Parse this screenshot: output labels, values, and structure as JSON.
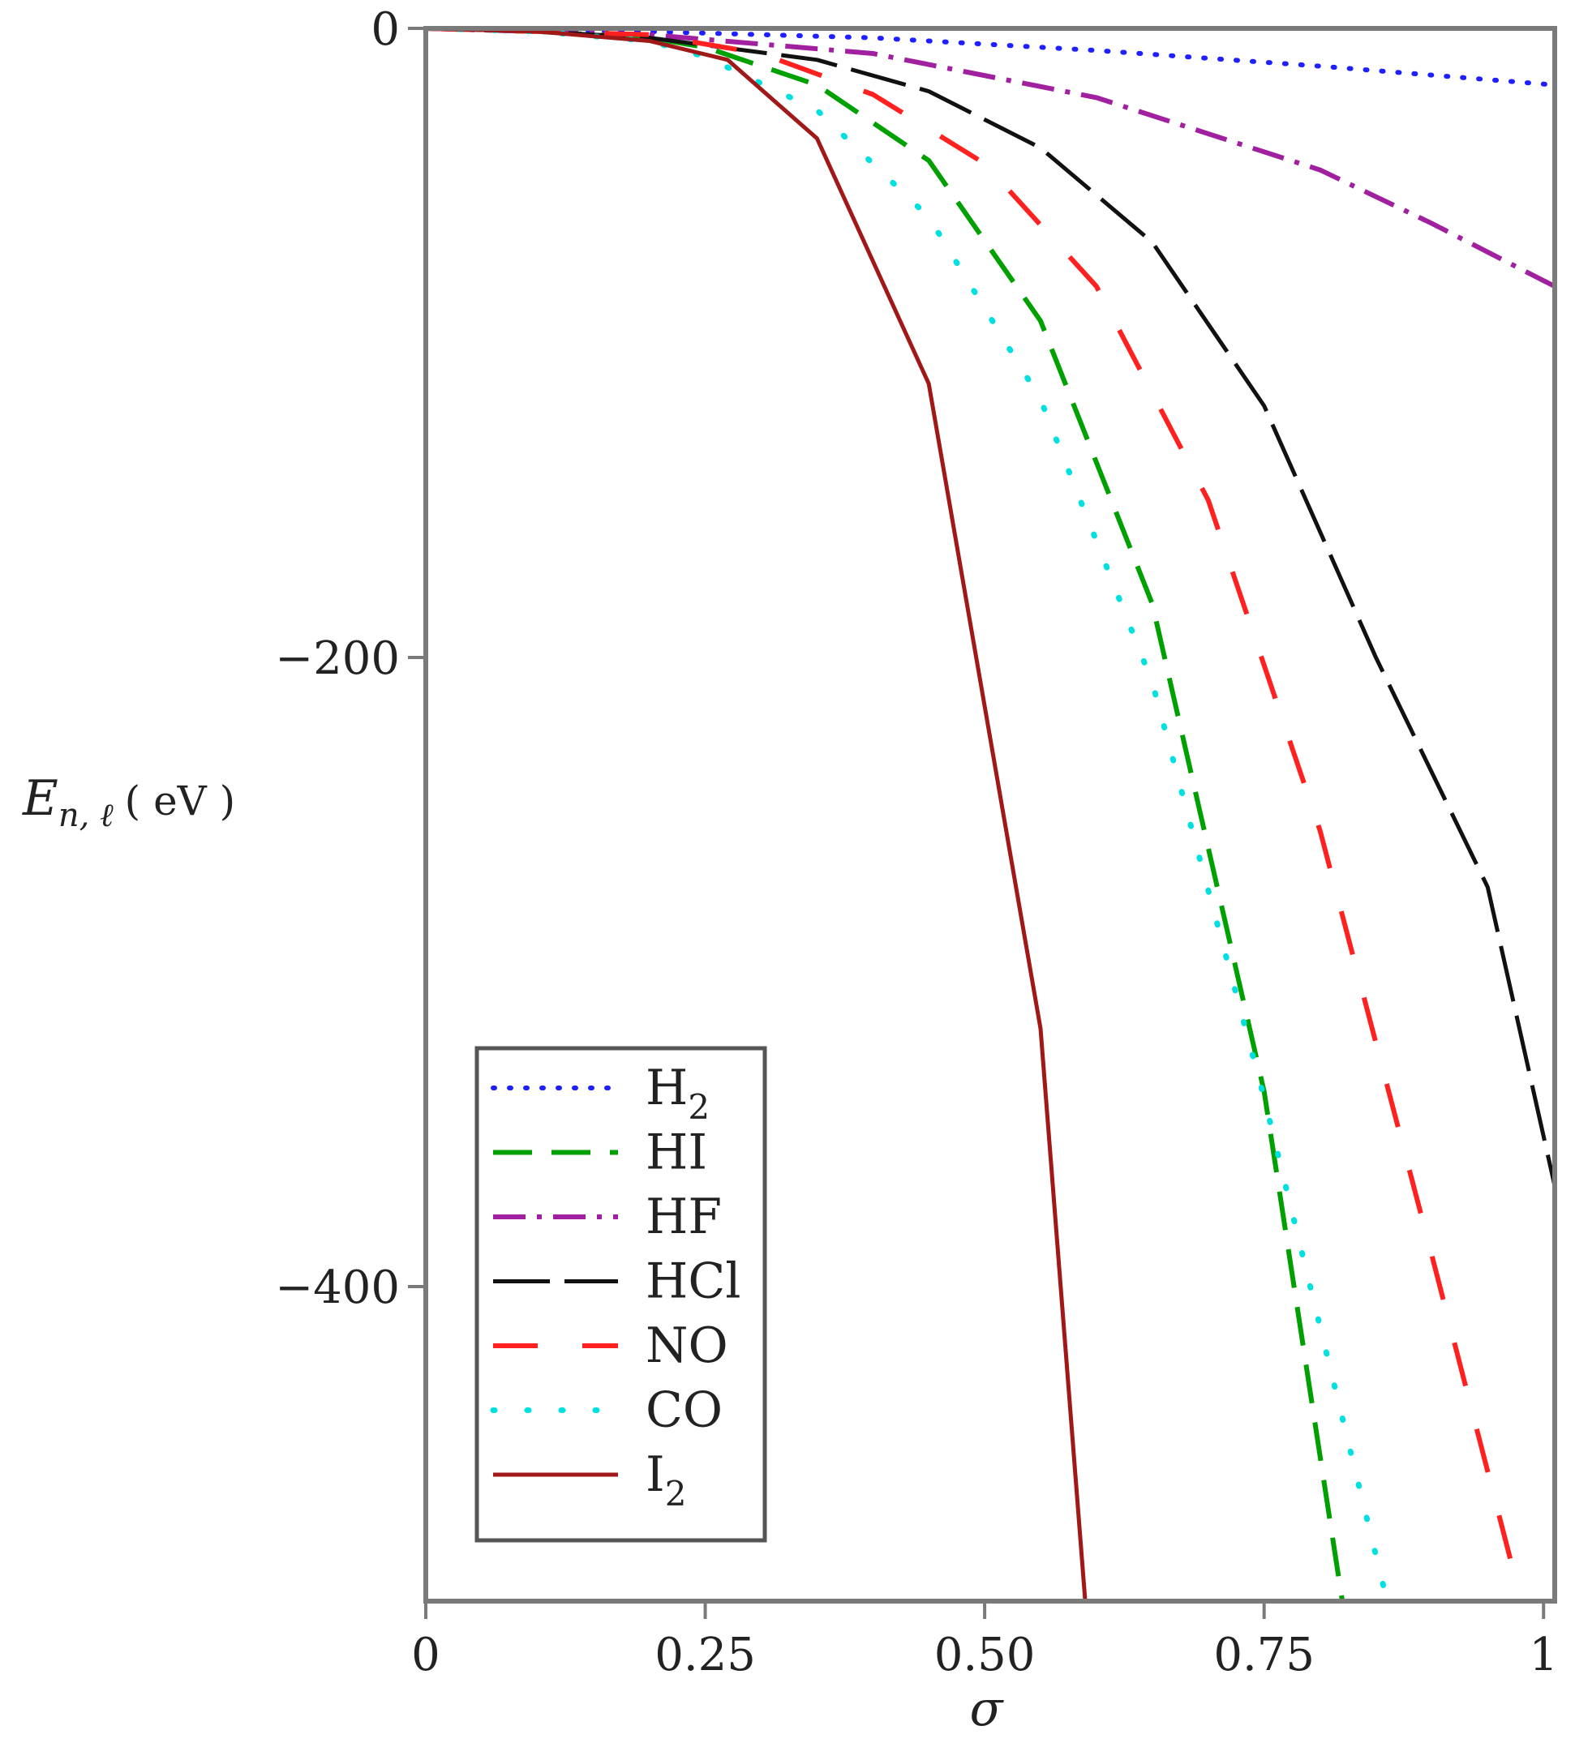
{
  "chart_data": {
    "type": "line",
    "title": "",
    "xlabel": "σ",
    "ylabel_main": "E",
    "ylabel_sub": "n, ℓ",
    "ylabel_unit": "( eV )",
    "xlim": [
      0,
      1.01
    ],
    "ylim": [
      -500,
      0
    ],
    "x_ticks": [
      {
        "value": 0,
        "label": "0"
      },
      {
        "value": 0.25,
        "label": "0.25"
      },
      {
        "value": 0.5,
        "label": "0.50"
      },
      {
        "value": 0.75,
        "label": "0.75"
      },
      {
        "value": 1,
        "label": "1"
      }
    ],
    "y_ticks": [
      {
        "value": 0,
        "label": "0"
      },
      {
        "value": -200,
        "label": "−200"
      },
      {
        "value": -400,
        "label": "−400"
      }
    ],
    "legend_position": "bottom-left",
    "series": [
      {
        "name": "H",
        "sub": "2",
        "color": "#1f1fff",
        "dash": "2 18",
        "width": 6,
        "cap": "round",
        "x": [
          0,
          0.2,
          0.4,
          0.6,
          0.8,
          1.01
        ],
        "y": [
          0,
          -1,
          -3,
          -7,
          -12,
          -18
        ]
      },
      {
        "name": "HI",
        "sub": "",
        "color": "#00a000",
        "dash": "48 24",
        "width": 6,
        "cap": "butt",
        "x": [
          0,
          0.1,
          0.2,
          0.25,
          0.35,
          0.45,
          0.55,
          0.65,
          0.75,
          0.82
        ],
        "y": [
          0,
          -1,
          -3,
          -6,
          -18,
          -42,
          -93,
          -183,
          -338,
          -500
        ]
      },
      {
        "name": "HF",
        "sub": "",
        "color": "#a020a0",
        "dash": "40 14 6 14",
        "width": 6,
        "cap": "butt",
        "x": [
          0,
          0.2,
          0.4,
          0.6,
          0.8,
          0.9,
          1.01
        ],
        "y": [
          0,
          -2,
          -8,
          -22,
          -45,
          -62,
          -82
        ]
      },
      {
        "name": "HCl",
        "sub": "",
        "color": "#111111",
        "dash": "70 18",
        "width": 5,
        "cap": "butt",
        "x": [
          0,
          0.1,
          0.2,
          0.35,
          0.45,
          0.55,
          0.65,
          0.75,
          0.85,
          0.95,
          1.01
        ],
        "y": [
          0,
          -1,
          -3,
          -10,
          -20,
          -38,
          -68,
          -120,
          -200,
          -273,
          -368
        ]
      },
      {
        "name": "NO",
        "sub": "",
        "color": "#ff2020",
        "dash": "55 55",
        "width": 6,
        "cap": "butt",
        "x": [
          0,
          0.2,
          0.3,
          0.4,
          0.5,
          0.6,
          0.7,
          0.8,
          0.9,
          0.98
        ],
        "y": [
          0,
          -2,
          -8,
          -21,
          -43,
          -82,
          -150,
          -255,
          -390,
          -500
        ]
      },
      {
        "name": "CO",
        "sub": "",
        "color": "#00e0e0",
        "dash": "2 40",
        "width": 7,
        "cap": "round",
        "x": [
          0,
          0.1,
          0.2,
          0.25,
          0.35,
          0.45,
          0.55,
          0.65,
          0.75,
          0.86
        ],
        "y": [
          0,
          -1,
          -4,
          -9,
          -26,
          -60,
          -118,
          -208,
          -340,
          -500
        ]
      },
      {
        "name": "I",
        "sub": "2",
        "color": "#a01818",
        "dash": "",
        "width": 5,
        "cap": "butt",
        "x": [
          0,
          0.1,
          0.2,
          0.27,
          0.35,
          0.45,
          0.55,
          0.59
        ],
        "y": [
          0,
          -1,
          -4,
          -10,
          -35,
          -113,
          -318,
          -500
        ]
      }
    ]
  }
}
